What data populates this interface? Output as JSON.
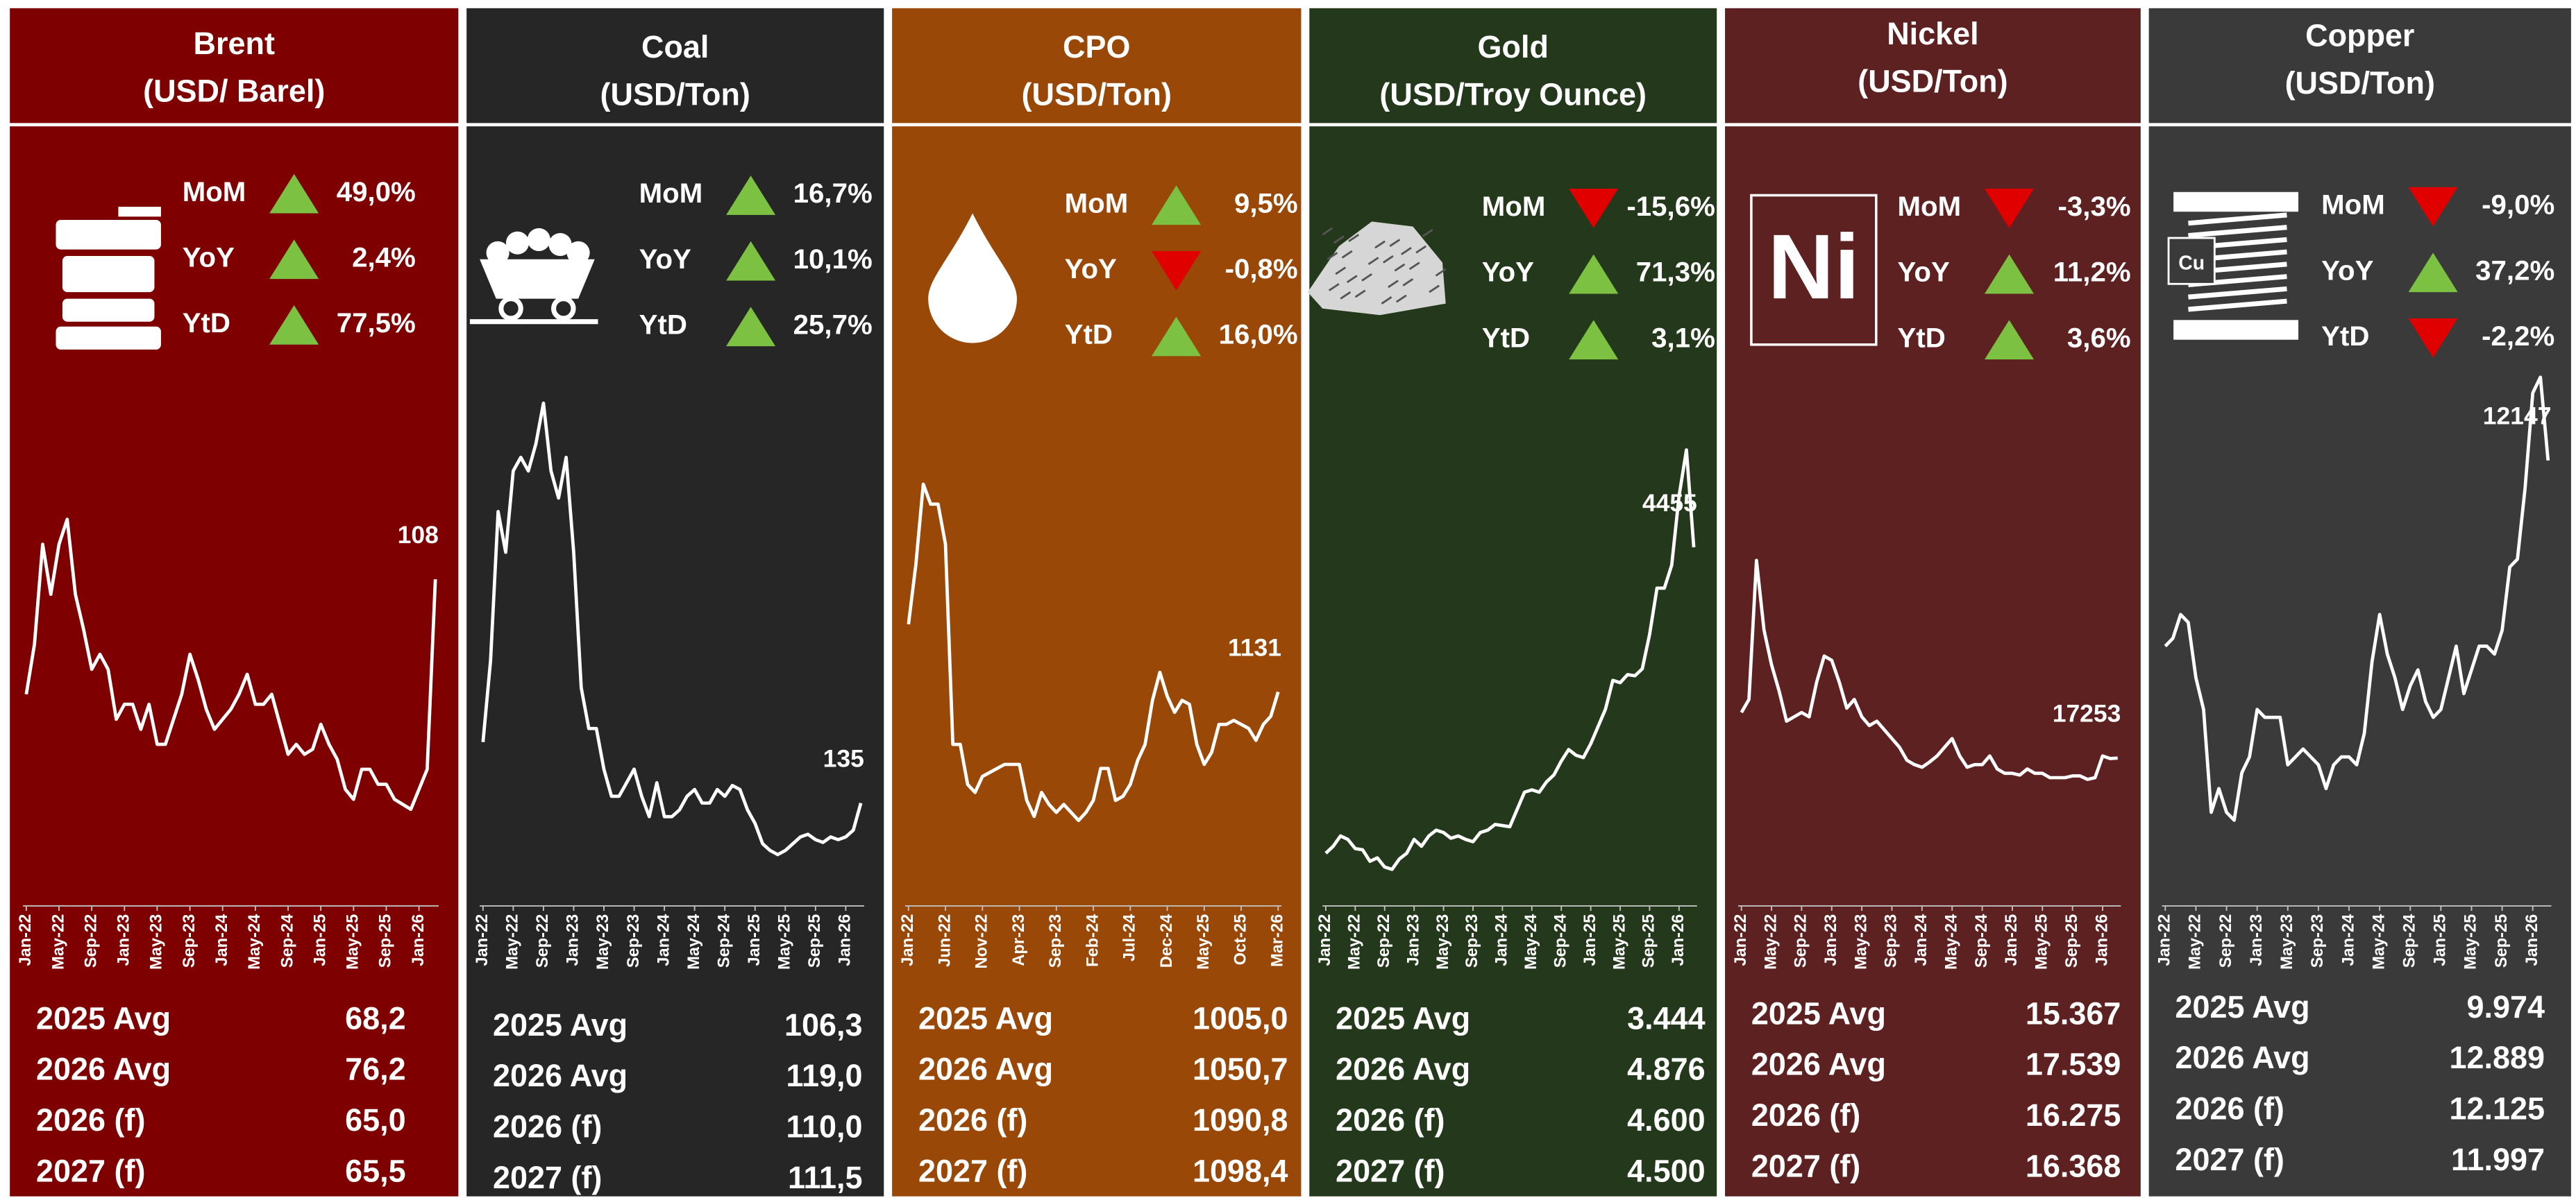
{
  "chart_data": [
    {
      "type": "line",
      "title": "Brent",
      "subtitle": "(USD/ Barel)",
      "background": "#7e0000",
      "color": "#ffffff",
      "up_color": "#7cc142",
      "down_color": "#e00000",
      "stats": {
        "names": [
          "MoM",
          "YoY",
          "YtD"
        ],
        "values": [
          49.0,
          2.4,
          77.5
        ],
        "value_labels": [
          "49,0%",
          "2,4%",
          "77,5%"
        ]
      },
      "x": [
        "Jan-22",
        "Feb-22",
        "Mar-22",
        "Apr-22",
        "May-22",
        "Jun-22",
        "Jul-22",
        "Aug-22",
        "Sep-22",
        "Oct-22",
        "Nov-22",
        "Dec-22",
        "Jan-23",
        "Feb-23",
        "Mar-23",
        "Apr-23",
        "May-23",
        "Jun-23",
        "Jul-23",
        "Aug-23",
        "Sep-23",
        "Oct-23",
        "Nov-23",
        "Dec-23",
        "Jan-24",
        "Feb-24",
        "Mar-24",
        "Apr-24",
        "May-24",
        "Jun-24",
        "Jul-24",
        "Aug-24",
        "Sep-24",
        "Oct-24",
        "Nov-24",
        "Dec-24",
        "Jan-25",
        "Feb-25",
        "Mar-25",
        "Apr-25",
        "May-25",
        "Jun-25",
        "Jul-25",
        "Aug-25",
        "Sep-25",
        "Oct-25",
        "Nov-25",
        "Dec-25",
        "Jan-26",
        "Feb-26",
        "Mar-26"
      ],
      "values": [
        85,
        95,
        115,
        105,
        115,
        120,
        105,
        98,
        90,
        93,
        90,
        80,
        83,
        83,
        78,
        83,
        75,
        75,
        80,
        85,
        93,
        88,
        82,
        78,
        80,
        82,
        85,
        89,
        83,
        83,
        85,
        79,
        73,
        75,
        73,
        74,
        79,
        75,
        72,
        66,
        64,
        70,
        70,
        67,
        67,
        64,
        63,
        62,
        66,
        70,
        108
      ],
      "ylim": [
        44,
        150
      ],
      "xticks": [
        "Jan-22",
        "May-22",
        "Sep-22",
        "Jan-23",
        "May-23",
        "Sep-23",
        "Jan-24",
        "May-24",
        "Sep-24",
        "Jan-25",
        "May-25",
        "Sep-25",
        "Jan-26"
      ],
      "table": {
        "rows": [
          "2025 Avg",
          "2026 Avg",
          "2026 (f)",
          "2027 (f)"
        ],
        "values": [
          "68,2",
          "76,2",
          "65,0",
          "65,5"
        ]
      }
    },
    {
      "type": "line",
      "title": "Coal",
      "subtitle": "(USD/Ton)",
      "background": "#262626",
      "color": "#ffffff",
      "up_color": "#7cc142",
      "down_color": "#e00000",
      "stats": {
        "names": [
          "MoM",
          "YoY",
          "YtD"
        ],
        "values": [
          16.7,
          10.1,
          25.7
        ],
        "value_labels": [
          "16,7%",
          "10,1%",
          "25,7%"
        ]
      },
      "x": [
        "Jan-22",
        "Feb-22",
        "Mar-22",
        "Apr-22",
        "May-22",
        "Jun-22",
        "Jul-22",
        "Aug-22",
        "Sep-22",
        "Oct-22",
        "Nov-22",
        "Dec-22",
        "Jan-23",
        "Feb-23",
        "Mar-23",
        "Apr-23",
        "May-23",
        "Jun-23",
        "Jul-23",
        "Aug-23",
        "Sep-23",
        "Oct-23",
        "Nov-23",
        "Dec-23",
        "Jan-24",
        "Feb-24",
        "Mar-24",
        "Apr-24",
        "May-24",
        "Jun-24",
        "Jul-24",
        "Aug-24",
        "Sep-24",
        "Oct-24",
        "Nov-24",
        "Dec-24",
        "Jan-25",
        "Feb-25",
        "Mar-25",
        "Apr-25",
        "May-25",
        "Jun-25",
        "Jul-25",
        "Aug-25",
        "Sep-25",
        "Oct-25",
        "Nov-25",
        "Dec-25",
        "Jan-26",
        "Feb-26",
        "Mar-26"
      ],
      "values": [
        180,
        240,
        350,
        320,
        380,
        390,
        380,
        400,
        430,
        380,
        360,
        390,
        320,
        220,
        190,
        190,
        160,
        140,
        140,
        150,
        160,
        140,
        125,
        150,
        125,
        125,
        130,
        140,
        145,
        135,
        135,
        145,
        140,
        148,
        145,
        130,
        120,
        105,
        100,
        97,
        100,
        105,
        110,
        112,
        108,
        106,
        110,
        108,
        110,
        115,
        135
      ],
      "ylim": [
        64,
        455
      ],
      "xticks": [
        "Jan-22",
        "May-22",
        "Sep-22",
        "Jan-23",
        "May-23",
        "Sep-23",
        "Jan-24",
        "May-24",
        "Sep-24",
        "Jan-25",
        "May-25",
        "Sep-25",
        "Jan-26"
      ],
      "table": {
        "rows": [
          "2025 Avg",
          "2026 Avg",
          "2026 (f)",
          "2027 (f)"
        ],
        "values": [
          "106,3",
          "119,0",
          "110,0",
          "111,5"
        ]
      }
    },
    {
      "type": "line",
      "title": "CPO",
      "subtitle": "(USD/Ton)",
      "background": "#9a4808",
      "color": "#ffffff",
      "up_color": "#7cc142",
      "down_color": "#e00000",
      "stats": {
        "names": [
          "MoM",
          "YoY",
          "YtD"
        ],
        "values": [
          9.5,
          -0.8,
          16.0
        ],
        "value_labels": [
          "9,5%",
          "-0,8%",
          "16,0%"
        ]
      },
      "x": [
        "Jan-22",
        "Feb-22",
        "Mar-22",
        "Apr-22",
        "May-22",
        "Jun-22",
        "Jul-22",
        "Aug-22",
        "Sep-22",
        "Oct-22",
        "Nov-22",
        "Dec-22",
        "Jan-23",
        "Feb-23",
        "Mar-23",
        "Apr-23",
        "May-23",
        "Jun-23",
        "Jul-23",
        "Aug-23",
        "Sep-23",
        "Oct-23",
        "Nov-23",
        "Dec-23",
        "Jan-24",
        "Feb-24",
        "Mar-24",
        "Apr-24",
        "May-24",
        "Jun-24",
        "Jul-24",
        "Aug-24",
        "Sep-24",
        "Oct-24",
        "Nov-24",
        "Dec-24",
        "Jan-25",
        "Feb-25",
        "Mar-25",
        "Apr-25",
        "May-25",
        "Jun-25",
        "Jul-25",
        "Aug-25",
        "Sep-25",
        "Oct-25",
        "Nov-25",
        "Dec-25",
        "Jan-26",
        "Feb-26",
        "Mar-26"
      ],
      "values": [
        1300,
        1450,
        1650,
        1600,
        1600,
        1500,
        1000,
        1000,
        900,
        880,
        920,
        930,
        940,
        950,
        950,
        950,
        860,
        820,
        880,
        850,
        830,
        850,
        830,
        810,
        830,
        860,
        940,
        940,
        860,
        870,
        900,
        960,
        1000,
        1110,
        1180,
        1120,
        1080,
        1110,
        1100,
        1000,
        950,
        980,
        1050,
        1050,
        1060,
        1050,
        1040,
        1010,
        1050,
        1070,
        1131
      ],
      "ylim": [
        613,
        1937
      ],
      "xticks": [
        "Jan-22",
        "Jun-22",
        "Nov-22",
        "Apr-23",
        "Sep-23",
        "Feb-24",
        "Jul-24",
        "Dec-24",
        "May-25",
        "Oct-25",
        "Mar-26"
      ],
      "table": {
        "rows": [
          "2025 Avg",
          "2026 Avg",
          "2026 (f)",
          "2027 (f)"
        ],
        "values": [
          "1005,0",
          "1050,7",
          "1090,8",
          "1098,4"
        ]
      }
    },
    {
      "type": "line",
      "title": "Gold",
      "subtitle": "(USD/Troy Ounce)",
      "background": "#24391b",
      "color": "#ffffff",
      "up_color": "#7cc142",
      "down_color": "#e00000",
      "stats": {
        "names": [
          "MoM",
          "YoY",
          "YtD"
        ],
        "values": [
          -15.6,
          71.3,
          3.1
        ],
        "value_labels": [
          "-15,6%",
          "71,3%",
          "3,1%"
        ]
      },
      "x": [
        "Jan-22",
        "Feb-22",
        "Mar-22",
        "Apr-22",
        "May-22",
        "Jun-22",
        "Jul-22",
        "Aug-22",
        "Sep-22",
        "Oct-22",
        "Nov-22",
        "Dec-22",
        "Jan-23",
        "Feb-23",
        "Mar-23",
        "Apr-23",
        "May-23",
        "Jun-23",
        "Jul-23",
        "Aug-23",
        "Sep-23",
        "Oct-23",
        "Nov-23",
        "Dec-23",
        "Jan-24",
        "Feb-24",
        "Mar-24",
        "Apr-24",
        "May-24",
        "Jun-24",
        "Jul-24",
        "Aug-24",
        "Sep-24",
        "Oct-24",
        "Nov-24",
        "Dec-24",
        "Jan-25",
        "Feb-25",
        "Mar-25",
        "Apr-25",
        "May-25",
        "Jun-25",
        "Jul-25",
        "Aug-25",
        "Sep-25",
        "Oct-25",
        "Nov-25",
        "Dec-25",
        "Jan-26",
        "Feb-26",
        "Mar-26"
      ],
      "values": [
        1800,
        1860,
        1950,
        1920,
        1840,
        1830,
        1730,
        1760,
        1680,
        1660,
        1750,
        1800,
        1920,
        1860,
        1950,
        2000,
        1980,
        1930,
        1950,
        1920,
        1900,
        1980,
        2000,
        2050,
        2040,
        2030,
        2180,
        2330,
        2350,
        2330,
        2420,
        2480,
        2600,
        2700,
        2650,
        2630,
        2750,
        2900,
        3050,
        3300,
        3280,
        3350,
        3340,
        3400,
        3700,
        4100,
        4100,
        4300,
        4900,
        5300,
        4455
      ],
      "ylim": [
        1400,
        6000
      ],
      "xticks": [
        "Jan-22",
        "May-22",
        "Sep-22",
        "Jan-23",
        "May-23",
        "Sep-23",
        "Jan-24",
        "May-24",
        "Sep-24",
        "Jan-25",
        "May-25",
        "Sep-25",
        "Jan-26"
      ],
      "table": {
        "rows": [
          "2025 Avg",
          "2026 Avg",
          "2026 (f)",
          "2027 (f)"
        ],
        "values": [
          "3.444",
          "4.876",
          "4.600",
          "4.500"
        ]
      }
    },
    {
      "type": "line",
      "title": "Nickel",
      "subtitle": "(USD/Ton)",
      "background": "#5e2121",
      "color": "#ffffff",
      "up_color": "#7cc142",
      "down_color": "#e00000",
      "icon_label": "Ni",
      "stats": {
        "names": [
          "MoM",
          "YoY",
          "YtD"
        ],
        "values": [
          -3.3,
          11.2,
          3.6
        ],
        "value_labels": [
          "-3,3%",
          "11,2%",
          "3,6%"
        ]
      },
      "x": [
        "Jan-22",
        "Feb-22",
        "Mar-22",
        "Apr-22",
        "May-22",
        "Jun-22",
        "Jul-22",
        "Aug-22",
        "Sep-22",
        "Oct-22",
        "Nov-22",
        "Dec-22",
        "Jan-23",
        "Feb-23",
        "Mar-23",
        "Apr-23",
        "May-23",
        "Jun-23",
        "Jul-23",
        "Aug-23",
        "Sep-23",
        "Oct-23",
        "Nov-23",
        "Dec-23",
        "Jan-24",
        "Feb-24",
        "Mar-24",
        "Apr-24",
        "May-24",
        "Jun-24",
        "Jul-24",
        "Aug-24",
        "Sep-24",
        "Oct-24",
        "Nov-24",
        "Dec-24",
        "Jan-25",
        "Feb-25",
        "Mar-25",
        "Apr-25",
        "May-25",
        "Jun-25",
        "Jul-25",
        "Aug-25",
        "Sep-25",
        "Oct-25",
        "Nov-25",
        "Dec-25",
        "Jan-26",
        "Feb-26",
        "Mar-26"
      ],
      "values": [
        22500,
        24000,
        40000,
        32000,
        28000,
        25000,
        21500,
        22000,
        22500,
        22000,
        26000,
        29000,
        28500,
        26000,
        23000,
        24000,
        22000,
        21000,
        21500,
        20500,
        19500,
        18500,
        17000,
        16500,
        16200,
        16800,
        17500,
        18500,
        19500,
        17500,
        16200,
        16500,
        16500,
        17500,
        16000,
        15500,
        15500,
        15300,
        16000,
        15500,
        15500,
        15000,
        15000,
        15000,
        15200,
        15200,
        14800,
        15000,
        17500,
        17200,
        17253
      ],
      "ylim": [
        1000,
        62000
      ],
      "xticks": [
        "Jan-22",
        "May-22",
        "Sep-22",
        "Jan-23",
        "May-23",
        "Sep-23",
        "Jan-24",
        "May-24",
        "Sep-24",
        "Jan-25",
        "May-25",
        "Sep-25",
        "Jan-26"
      ],
      "table": {
        "rows": [
          "2025 Avg",
          "2026 Avg",
          "2026 (f)",
          "2027 (f)"
        ],
        "values": [
          "15.367",
          "17.539",
          "16.275",
          "16.368"
        ]
      }
    },
    {
      "type": "line",
      "title": "Copper",
      "subtitle": "(USD/Ton)",
      "background": "#3a3a3a",
      "color": "#ffffff",
      "up_color": "#7cc142",
      "down_color": "#e00000",
      "icon_label": "Cu",
      "stats": {
        "names": [
          "MoM",
          "YoY",
          "YtD"
        ],
        "values": [
          -9.0,
          37.2,
          -2.2
        ],
        "value_labels": [
          "-9,0%",
          "37,2%",
          "-2,2%"
        ]
      },
      "x": [
        "Jan-22",
        "Feb-22",
        "Mar-22",
        "Apr-22",
        "May-22",
        "Jun-22",
        "Jul-22",
        "Aug-22",
        "Sep-22",
        "Oct-22",
        "Nov-22",
        "Dec-22",
        "Jan-23",
        "Feb-23",
        "Mar-23",
        "Apr-23",
        "May-23",
        "Jun-23",
        "Jul-23",
        "Aug-23",
        "Sep-23",
        "Oct-23",
        "Nov-23",
        "Dec-23",
        "Jan-24",
        "Feb-24",
        "Mar-24",
        "Apr-24",
        "May-24",
        "Jun-24",
        "Jul-24",
        "Aug-24",
        "Sep-24",
        "Oct-24",
        "Nov-24",
        "Dec-24",
        "Jan-25",
        "Feb-25",
        "Mar-25",
        "Apr-25",
        "May-25",
        "Jun-25",
        "Jul-25",
        "Aug-25",
        "Sep-25",
        "Oct-25",
        "Nov-25",
        "Dec-25",
        "Jan-26",
        "Feb-26",
        "Mar-26"
      ],
      "values": [
        9800,
        9900,
        10200,
        10100,
        9400,
        9000,
        7700,
        8000,
        7700,
        7600,
        8200,
        8400,
        9000,
        8900,
        8900,
        8900,
        8300,
        8400,
        8500,
        8400,
        8300,
        8000,
        8300,
        8400,
        8400,
        8300,
        8700,
        9600,
        10200,
        9700,
        9400,
        9000,
        9300,
        9500,
        9100,
        8900,
        9000,
        9400,
        9800,
        9200,
        9500,
        9800,
        9800,
        9700,
        10000,
        10800,
        10900,
        11800,
        13000,
        13200,
        12147
      ],
      "ylim": [
        6600,
        13300
      ],
      "xticks": [
        "Jan-22",
        "May-22",
        "Sep-22",
        "Jan-23",
        "May-23",
        "Sep-23",
        "Jan-24",
        "May-24",
        "Sep-24",
        "Jan-25",
        "May-25",
        "Sep-25",
        "Jan-26"
      ],
      "table": {
        "rows": [
          "2025 Avg",
          "2026 Avg",
          "2026 (f)",
          "2027 (f)"
        ],
        "values": [
          "9.974",
          "12.889",
          "12.125",
          "11.997"
        ]
      }
    }
  ]
}
